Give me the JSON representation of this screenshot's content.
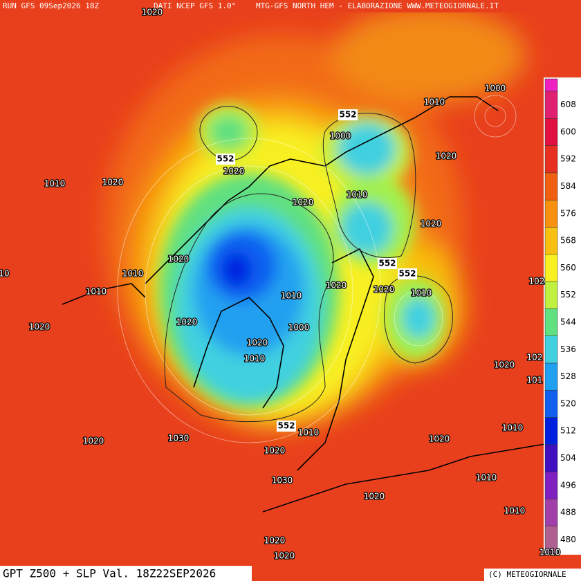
{
  "header": {
    "run": "RUN GFS 09Sep2026 18Z",
    "source": "DATI NCEP GFS 1.0°",
    "credit": "MTG-GFS NORTH HEM - ELABORAZIONE WWW.METEOGIORNALE.IT"
  },
  "footer": "GPT Z500 + SLP Val. 18Z22SEP2026",
  "copyright": "(C) METEOGIORNALE",
  "colorbar": {
    "ticks": [
      480,
      488,
      496,
      504,
      512,
      520,
      528,
      536,
      544,
      552,
      560,
      568,
      576,
      584,
      592,
      600,
      608
    ],
    "colors": [
      "#b06090",
      "#a040a8",
      "#8020c0",
      "#4010c0",
      "#0020e0",
      "#1060f0",
      "#20a0f0",
      "#40d0e0",
      "#60e080",
      "#c0f040",
      "#f8f020",
      "#f8c010",
      "#f89010",
      "#f06010",
      "#e83020",
      "#e01040",
      "#e02070"
    ]
  },
  "slp_labels": [
    "1020",
    "1000",
    "1010",
    "1000",
    "1020",
    "1010",
    "1020",
    "1020",
    "1020",
    "1010",
    "1020",
    "1020",
    "1010",
    "10",
    "102",
    "1010",
    "1020",
    "1020",
    "1010",
    "1010",
    "1020",
    "1000",
    "1020",
    "1020",
    "1010",
    "1020",
    "102",
    "101",
    "1010",
    "1030",
    "1020",
    "1020",
    "1010",
    "1020",
    "1010",
    "1030",
    "1020",
    "1010",
    "1020",
    "1010",
    "1020"
  ],
  "z500_labels": [
    "552",
    "552",
    "552",
    "552",
    "552"
  ]
}
